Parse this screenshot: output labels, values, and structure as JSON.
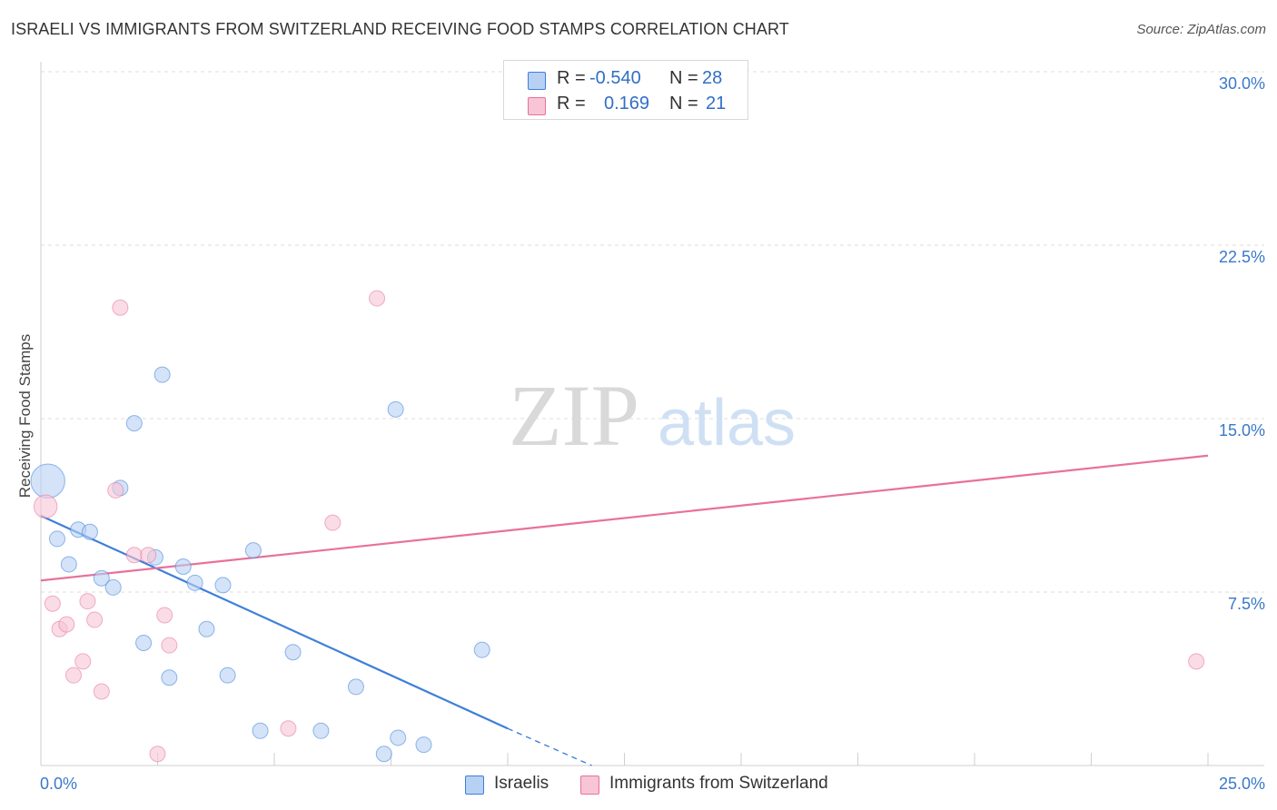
{
  "header": {
    "title": "ISRAELI VS IMMIGRANTS FROM SWITZERLAND RECEIVING FOOD STAMPS CORRELATION CHART",
    "source": "Source: ZipAtlas.com"
  },
  "watermark": {
    "zip": "ZIP",
    "atlas": "atlas"
  },
  "colors": {
    "blue": "#3d7fd9",
    "blue_fill": "#b7d1f4",
    "pink": "#e8719a",
    "pink_fill": "#f7c5d5",
    "tick": "#3a78c9"
  },
  "legend": {
    "rows": [
      {
        "r_label": "R =",
        "r_value": "-0.540",
        "n_label": "N =",
        "n_value": "28"
      },
      {
        "r_label": "R =",
        "r_value": "0.169",
        "n_label": "N =",
        "n_value": "21"
      }
    ]
  },
  "bottom_legend": [
    {
      "label": "Israelis"
    },
    {
      "label": "Immigrants from Switzerland"
    }
  ],
  "chart_data": {
    "type": "scatter",
    "title": "ISRAELI VS IMMIGRANTS FROM SWITZERLAND RECEIVING FOOD STAMPS CORRELATION CHART",
    "xlabel": "",
    "ylabel": "Receiving Food Stamps",
    "xlim": [
      0,
      25
    ],
    "ylim": [
      0,
      30
    ],
    "x_tick_labels": [
      "0.0%",
      "25.0%"
    ],
    "y_ticks": [
      7.5,
      15.0,
      22.5,
      30.0
    ],
    "y_tick_labels": [
      "7.5%",
      "15.0%",
      "22.5%",
      "30.0%"
    ],
    "grid": true,
    "series": [
      {
        "name": "Israelis",
        "color": "#3d7fd9",
        "points": [
          [
            0.15,
            12.3,
            2.2
          ],
          [
            0.35,
            9.8,
            1
          ],
          [
            0.6,
            8.7,
            1
          ],
          [
            0.8,
            10.2,
            1
          ],
          [
            1.05,
            10.1,
            1
          ],
          [
            1.3,
            8.1,
            1
          ],
          [
            1.55,
            7.7,
            1
          ],
          [
            1.7,
            12.0,
            1
          ],
          [
            2.0,
            14.8,
            1
          ],
          [
            2.2,
            5.3,
            1
          ],
          [
            2.45,
            9.0,
            1
          ],
          [
            2.6,
            16.9,
            1
          ],
          [
            2.75,
            3.8,
            1
          ],
          [
            3.05,
            8.6,
            1
          ],
          [
            3.3,
            7.9,
            1
          ],
          [
            3.55,
            5.9,
            1
          ],
          [
            3.9,
            7.8,
            1
          ],
          [
            4.0,
            3.9,
            1
          ],
          [
            4.7,
            1.5,
            1
          ],
          [
            4.55,
            9.3,
            1
          ],
          [
            5.4,
            4.9,
            1
          ],
          [
            6.0,
            1.5,
            1
          ],
          [
            6.75,
            3.4,
            1
          ],
          [
            7.35,
            0.5,
            1
          ],
          [
            7.6,
            15.4,
            1
          ],
          [
            7.65,
            1.2,
            1
          ],
          [
            8.2,
            0.9,
            1
          ],
          [
            9.45,
            5.0,
            1
          ]
        ],
        "trend": {
          "x": [
            0.0,
            10.0
          ],
          "y": [
            10.8,
            1.6
          ],
          "dashed_to": [
            11.8,
            0.0
          ]
        }
      },
      {
        "name": "Immigrants from Switzerland",
        "color": "#e8719a",
        "points": [
          [
            0.1,
            11.2,
            1.5
          ],
          [
            0.25,
            7.0,
            1
          ],
          [
            0.4,
            5.9,
            1
          ],
          [
            0.55,
            6.1,
            1
          ],
          [
            0.7,
            3.9,
            1
          ],
          [
            0.9,
            4.5,
            1
          ],
          [
            1.0,
            7.1,
            1
          ],
          [
            1.15,
            6.3,
            1
          ],
          [
            1.3,
            3.2,
            1
          ],
          [
            1.6,
            11.9,
            1
          ],
          [
            1.7,
            19.8,
            1
          ],
          [
            2.0,
            9.1,
            1
          ],
          [
            2.3,
            9.1,
            1
          ],
          [
            2.5,
            0.5,
            1
          ],
          [
            2.65,
            6.5,
            1
          ],
          [
            2.75,
            5.2,
            1
          ],
          [
            5.3,
            1.6,
            1
          ],
          [
            6.25,
            10.5,
            1
          ],
          [
            7.2,
            20.2,
            1
          ],
          [
            10.1,
            29.9,
            1
          ],
          [
            24.75,
            4.5,
            1
          ]
        ],
        "trend": {
          "x": [
            0.0,
            25.0
          ],
          "y": [
            8.0,
            13.4
          ]
        }
      }
    ]
  }
}
